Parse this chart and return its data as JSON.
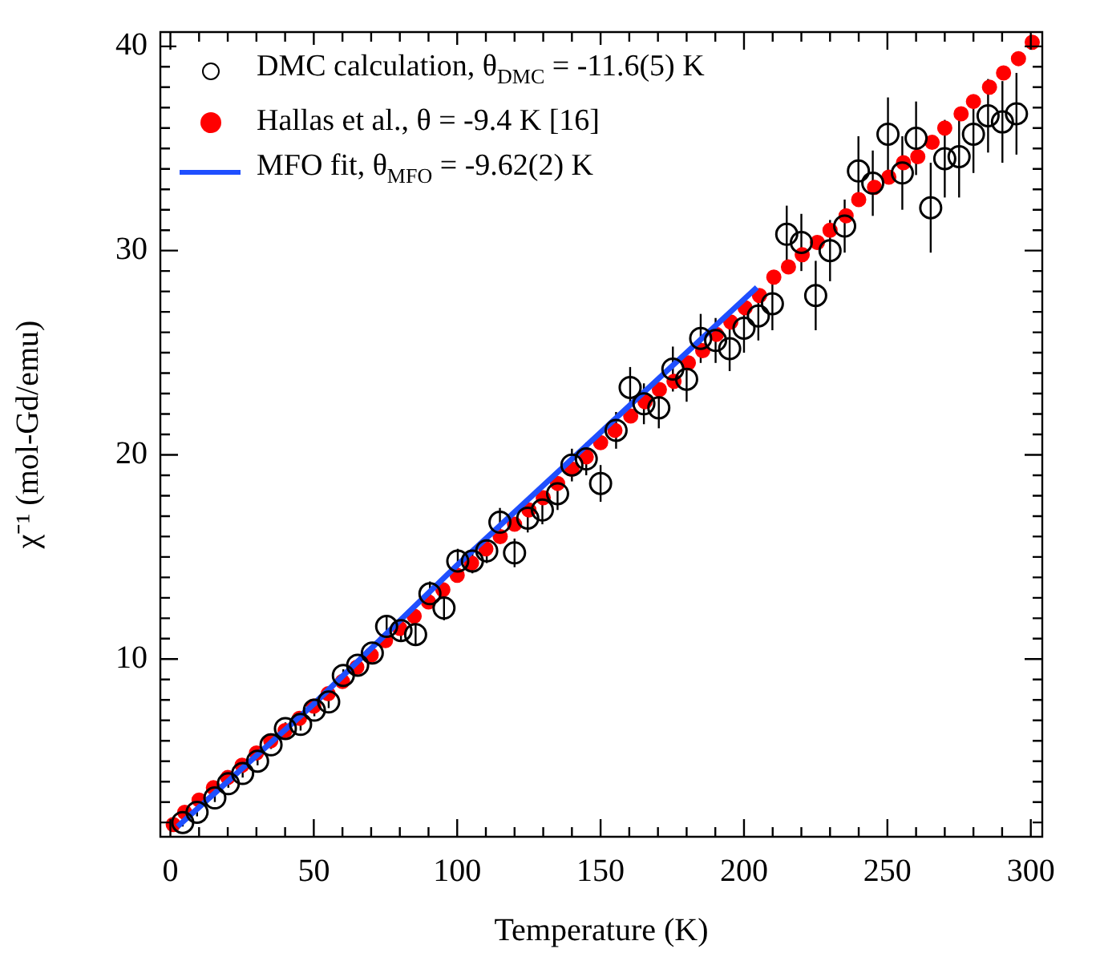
{
  "chart_data": {
    "type": "scatter",
    "xlabel": "Temperature (K)",
    "ylabel": "χ⁻¹ (mol-Gd/emu)",
    "xlim": [
      -3.5,
      304
    ],
    "ylim": [
      1.3,
      40.7
    ],
    "xticks": [
      0,
      {
        "value": 10,
        "label": null
      },
      {
        "value": 20,
        "label": null
      },
      {
        "value": 30,
        "label": null
      },
      {
        "value": 40,
        "label": null
      },
      50,
      {
        "value": 60,
        "label": null
      },
      {
        "value": 70,
        "label": null
      },
      {
        "value": 80,
        "label": null
      },
      {
        "value": 90,
        "label": null
      },
      100,
      {
        "value": 110,
        "label": null
      },
      {
        "value": 120,
        "label": null
      },
      {
        "value": 130,
        "label": null
      },
      {
        "value": 140,
        "label": null
      },
      150,
      {
        "value": 160,
        "label": null
      },
      {
        "value": 170,
        "label": null
      },
      {
        "value": 180,
        "label": null
      },
      {
        "value": 190,
        "label": null
      },
      200,
      {
        "value": 210,
        "label": null
      },
      {
        "value": 220,
        "label": null
      },
      {
        "value": 230,
        "label": null
      },
      {
        "value": 240,
        "label": null
      },
      250,
      {
        "value": 260,
        "label": null
      },
      {
        "value": 270,
        "label": null
      },
      {
        "value": 280,
        "label": null
      },
      {
        "value": 290,
        "label": null
      },
      300
    ],
    "yticks": [
      {
        "value": 2,
        "label": null
      },
      {
        "value": 3,
        "label": null
      },
      {
        "value": 4,
        "label": null
      },
      {
        "value": 5,
        "label": null
      },
      {
        "value": 6,
        "label": null
      },
      {
        "value": 7,
        "label": null
      },
      {
        "value": 8,
        "label": null
      },
      {
        "value": 9,
        "label": null
      },
      10,
      {
        "value": 11,
        "label": null
      },
      {
        "value": 12,
        "label": null
      },
      {
        "value": 13,
        "label": null
      },
      {
        "value": 14,
        "label": null
      },
      {
        "value": 15,
        "label": null
      },
      {
        "value": 16,
        "label": null
      },
      {
        "value": 17,
        "label": null
      },
      {
        "value": 18,
        "label": null
      },
      {
        "value": 19,
        "label": null
      },
      20,
      {
        "value": 21,
        "label": null
      },
      {
        "value": 22,
        "label": null
      },
      {
        "value": 23,
        "label": null
      },
      {
        "value": 24,
        "label": null
      },
      {
        "value": 25,
        "label": null
      },
      {
        "value": 26,
        "label": null
      },
      {
        "value": 27,
        "label": null
      },
      {
        "value": 28,
        "label": null
      },
      {
        "value": 29,
        "label": null
      },
      30,
      {
        "value": 31,
        "label": null
      },
      {
        "value": 32,
        "label": null
      },
      {
        "value": 33,
        "label": null
      },
      {
        "value": 34,
        "label": null
      },
      {
        "value": 35,
        "label": null
      },
      {
        "value": 36,
        "label": null
      },
      {
        "value": 37,
        "label": null
      },
      {
        "value": 38,
        "label": null
      },
      {
        "value": 39,
        "label": null
      },
      40
    ],
    "tick_labels": "xy-bottom-left",
    "grid": false,
    "legend": "top left",
    "series": [
      {
        "name": "DMC calculation, θ$_{DMC}$ = -11.6(5) K",
        "type": "scatter",
        "marker": "circle",
        "color": "#000000",
        "x": [
          4.3,
          9.3,
          15.5,
          20.2,
          25.2,
          30.4,
          35.1,
          40.1,
          45.4,
          50.2,
          55.2,
          60.3,
          65.3,
          70.4,
          75.4,
          80.4,
          85.5,
          90.5,
          95.4,
          100.2,
          105.3,
          110.3,
          114.9,
          120,
          124.6,
          129.7,
          135,
          140,
          145,
          150,
          155.4,
          160.3,
          165.1,
          170.3,
          175.2,
          180,
          184.9,
          190.1,
          195,
          200,
          205,
          209.9,
          214.9,
          220,
          225,
          230,
          235.1,
          239.9,
          244.9,
          250.2,
          255.2,
          260,
          265.1,
          270,
          275,
          280,
          285.1,
          290.1,
          295
        ],
        "values": [
          2.0,
          2.5,
          3.2,
          3.9,
          4.4,
          5.0,
          5.8,
          6.6,
          6.8,
          7.5,
          7.9,
          9.2,
          9.7,
          10.3,
          11.6,
          11.4,
          11.2,
          13.2,
          12.5,
          14.8,
          14.8,
          15.3,
          16.7,
          15.2,
          16.9,
          17.3,
          18.1,
          19.5,
          19.8,
          18.6,
          21.2,
          23.3,
          22.5,
          22.3,
          24.2,
          23.7,
          25.7,
          25.6,
          25.2,
          26.2,
          26.8,
          27.4,
          30.8,
          30.4,
          27.8,
          30.0,
          31.2,
          33.9,
          33.3,
          35.7,
          33.8,
          35.5,
          32.1,
          34.5,
          34.6,
          35.7,
          36.6,
          36.3,
          36.7
        ],
        "errors": [
          0.2,
          0.2,
          0.2,
          0.2,
          0.2,
          0.2,
          0.2,
          0.3,
          0.3,
          0.3,
          0.3,
          0.3,
          0.3,
          0.4,
          0.5,
          0.5,
          0.5,
          0.6,
          0.6,
          0.6,
          0.6,
          0.6,
          0.7,
          0.7,
          0.7,
          0.7,
          0.8,
          0.8,
          0.8,
          0.9,
          0.9,
          1.0,
          1.0,
          1.0,
          1.1,
          1.1,
          1.2,
          1.1,
          1.1,
          1.2,
          1.2,
          1.3,
          1.4,
          1.4,
          1.7,
          1.5,
          1.3,
          1.7,
          1.6,
          1.8,
          1.8,
          1.8,
          2.2,
          1.9,
          2.0,
          1.9,
          1.8,
          2.0,
          2.0
        ]
      },
      {
        "name": "Hallas et al., θ = -9.4 K  [16]",
        "type": "scatter",
        "marker": "circle",
        "color": "#ff0000",
        "x": [
          1,
          5,
          10,
          15,
          20,
          25,
          30,
          35,
          40,
          45,
          50,
          55,
          60,
          65,
          70,
          75,
          80,
          85,
          90,
          95,
          100,
          105,
          110,
          115,
          120,
          125,
          130,
          135,
          140,
          145,
          150,
          155,
          160.5,
          165.5,
          170.5,
          175.6,
          180.6,
          185.6,
          190.4,
          195.4,
          200.4,
          205.4,
          210.4,
          215.5,
          220.3,
          225.6,
          230,
          235.6,
          240,
          245.5,
          250.5,
          255.6,
          260.6,
          265.6,
          270,
          275.7,
          280,
          285.6,
          290.5,
          295.7,
          300.5
        ],
        "values": [
          1.9,
          2.5,
          3.1,
          3.7,
          4.2,
          4.8,
          5.4,
          6.0,
          6.5,
          7.1,
          7.7,
          8.3,
          8.9,
          9.6,
          10.2,
          10.9,
          11.5,
          12.1,
          12.8,
          13.4,
          14.1,
          14.7,
          15.4,
          16.0,
          16.6,
          17.3,
          17.9,
          18.6,
          19.3,
          19.9,
          20.6,
          21.2,
          21.9,
          22.6,
          23.2,
          23.6,
          24.5,
          25.1,
          25.9,
          26.5,
          27.2,
          27.8,
          28.7,
          29.2,
          29.8,
          30.4,
          31.0,
          31.7,
          32.5,
          33.1,
          33.6,
          34.3,
          34.6,
          35.3,
          36.0,
          36.7,
          37.3,
          38.0,
          38.7,
          39.4,
          40.2
        ]
      },
      {
        "name": "MFO fit,  θ$_{MFO}$ = -9.62(2) K",
        "type": "line",
        "marker": "none",
        "line_style": "solid",
        "color": "#1f4fff",
        "x": [
          2.5,
          50,
          100,
          150,
          204.5
        ],
        "values": [
          1.8,
          7.8,
          14.6,
          21.1,
          28.2
        ]
      }
    ]
  }
}
